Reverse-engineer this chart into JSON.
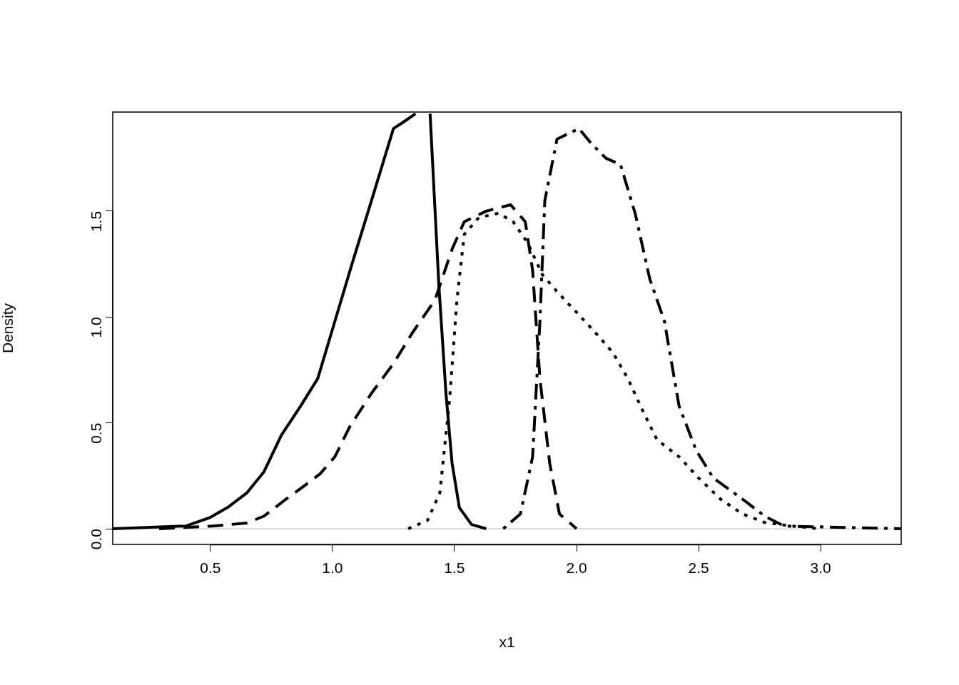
{
  "chart_data": {
    "type": "line",
    "xlabel": "x1",
    "ylabel": "Density",
    "xlim": [
      0.1,
      3.33
    ],
    "ylim": [
      -0.074,
      1.968
    ],
    "xticks": [
      {
        "value": 0.5,
        "label": "0.5"
      },
      {
        "value": 1.0,
        "label": "1.0"
      },
      {
        "value": 1.5,
        "label": "1.5"
      },
      {
        "value": 2.0,
        "label": "2.0"
      },
      {
        "value": 2.5,
        "label": "2.5"
      },
      {
        "value": 3.0,
        "label": "3.0"
      }
    ],
    "yticks": [
      {
        "value": 0.0,
        "label": "0.0"
      },
      {
        "value": 0.5,
        "label": "0.5"
      },
      {
        "value": 1.0,
        "label": "1.0"
      },
      {
        "value": 1.5,
        "label": "1.5"
      }
    ],
    "grid": false,
    "legend": false,
    "marker": "none",
    "ref_lines": [
      {
        "axis": "y",
        "value": 0,
        "color": "#bebebe",
        "line_style": "solid"
      }
    ],
    "series": [
      {
        "color": "#000000",
        "line_style": "solid",
        "x": [
          0.1,
          0.4,
          0.5,
          0.57,
          0.65,
          0.72,
          0.79,
          0.87,
          0.94,
          1.01,
          1.08,
          1.16,
          1.25,
          1.29,
          1.34,
          1.37,
          1.4,
          1.436,
          1.465,
          1.49,
          1.52,
          1.57,
          1.63
        ],
        "values": [
          0,
          0.013,
          0.054,
          0.1,
          0.17,
          0.27,
          0.44,
          0.58,
          0.71,
          0.98,
          1.25,
          1.55,
          1.89,
          1.92,
          1.96,
          null,
          1.96,
          1.15,
          0.64,
          0.31,
          0.1,
          0.02,
          0
        ]
      },
      {
        "color": "#000000",
        "line_style": "dashed",
        "x": [
          0.29,
          0.51,
          0.65,
          0.72,
          0.81,
          0.87,
          0.95,
          1.01,
          1.07,
          1.16,
          1.25,
          1.33,
          1.42,
          1.49,
          1.54,
          1.63,
          1.73,
          1.79,
          1.82,
          1.85,
          1.89,
          1.93,
          2.0
        ],
        "values": [
          0,
          0.013,
          0.027,
          0.06,
          0.14,
          0.19,
          0.26,
          0.34,
          0.48,
          0.64,
          0.78,
          0.93,
          1.08,
          1.32,
          1.45,
          1.5,
          1.53,
          1.45,
          1.22,
          0.71,
          0.31,
          0.07,
          0
        ]
      },
      {
        "color": "#000000",
        "line_style": "dotted",
        "x": [
          1.31,
          1.39,
          1.44,
          1.48,
          1.51,
          1.54,
          1.6,
          1.68,
          1.74,
          1.8,
          1.86,
          1.92,
          2.01,
          2.09,
          2.15,
          2.21,
          2.27,
          2.33,
          2.42,
          2.5,
          2.59,
          2.68,
          2.77,
          2.88,
          3.0
        ],
        "values": [
          0,
          0.04,
          0.17,
          0.61,
          1.08,
          1.39,
          1.47,
          1.49,
          1.45,
          1.35,
          1.2,
          1.12,
          1.01,
          0.91,
          0.83,
          0.71,
          0.56,
          0.42,
          0.34,
          0.24,
          0.14,
          0.07,
          0.03,
          0.013,
          0
        ]
      },
      {
        "color": "#000000",
        "line_style": "dashdot",
        "x": [
          1.7,
          1.77,
          1.82,
          1.85,
          1.87,
          1.92,
          2.01,
          2.06,
          2.12,
          2.18,
          2.24,
          2.3,
          2.36,
          2.42,
          2.49,
          2.56,
          2.68,
          2.77,
          2.85,
          3.33
        ],
        "values": [
          0,
          0.07,
          0.34,
          0.98,
          1.55,
          1.84,
          1.89,
          1.82,
          1.75,
          1.72,
          1.49,
          1.18,
          0.98,
          0.58,
          0.37,
          0.24,
          0.14,
          0.06,
          0.013,
          0
        ]
      }
    ]
  }
}
